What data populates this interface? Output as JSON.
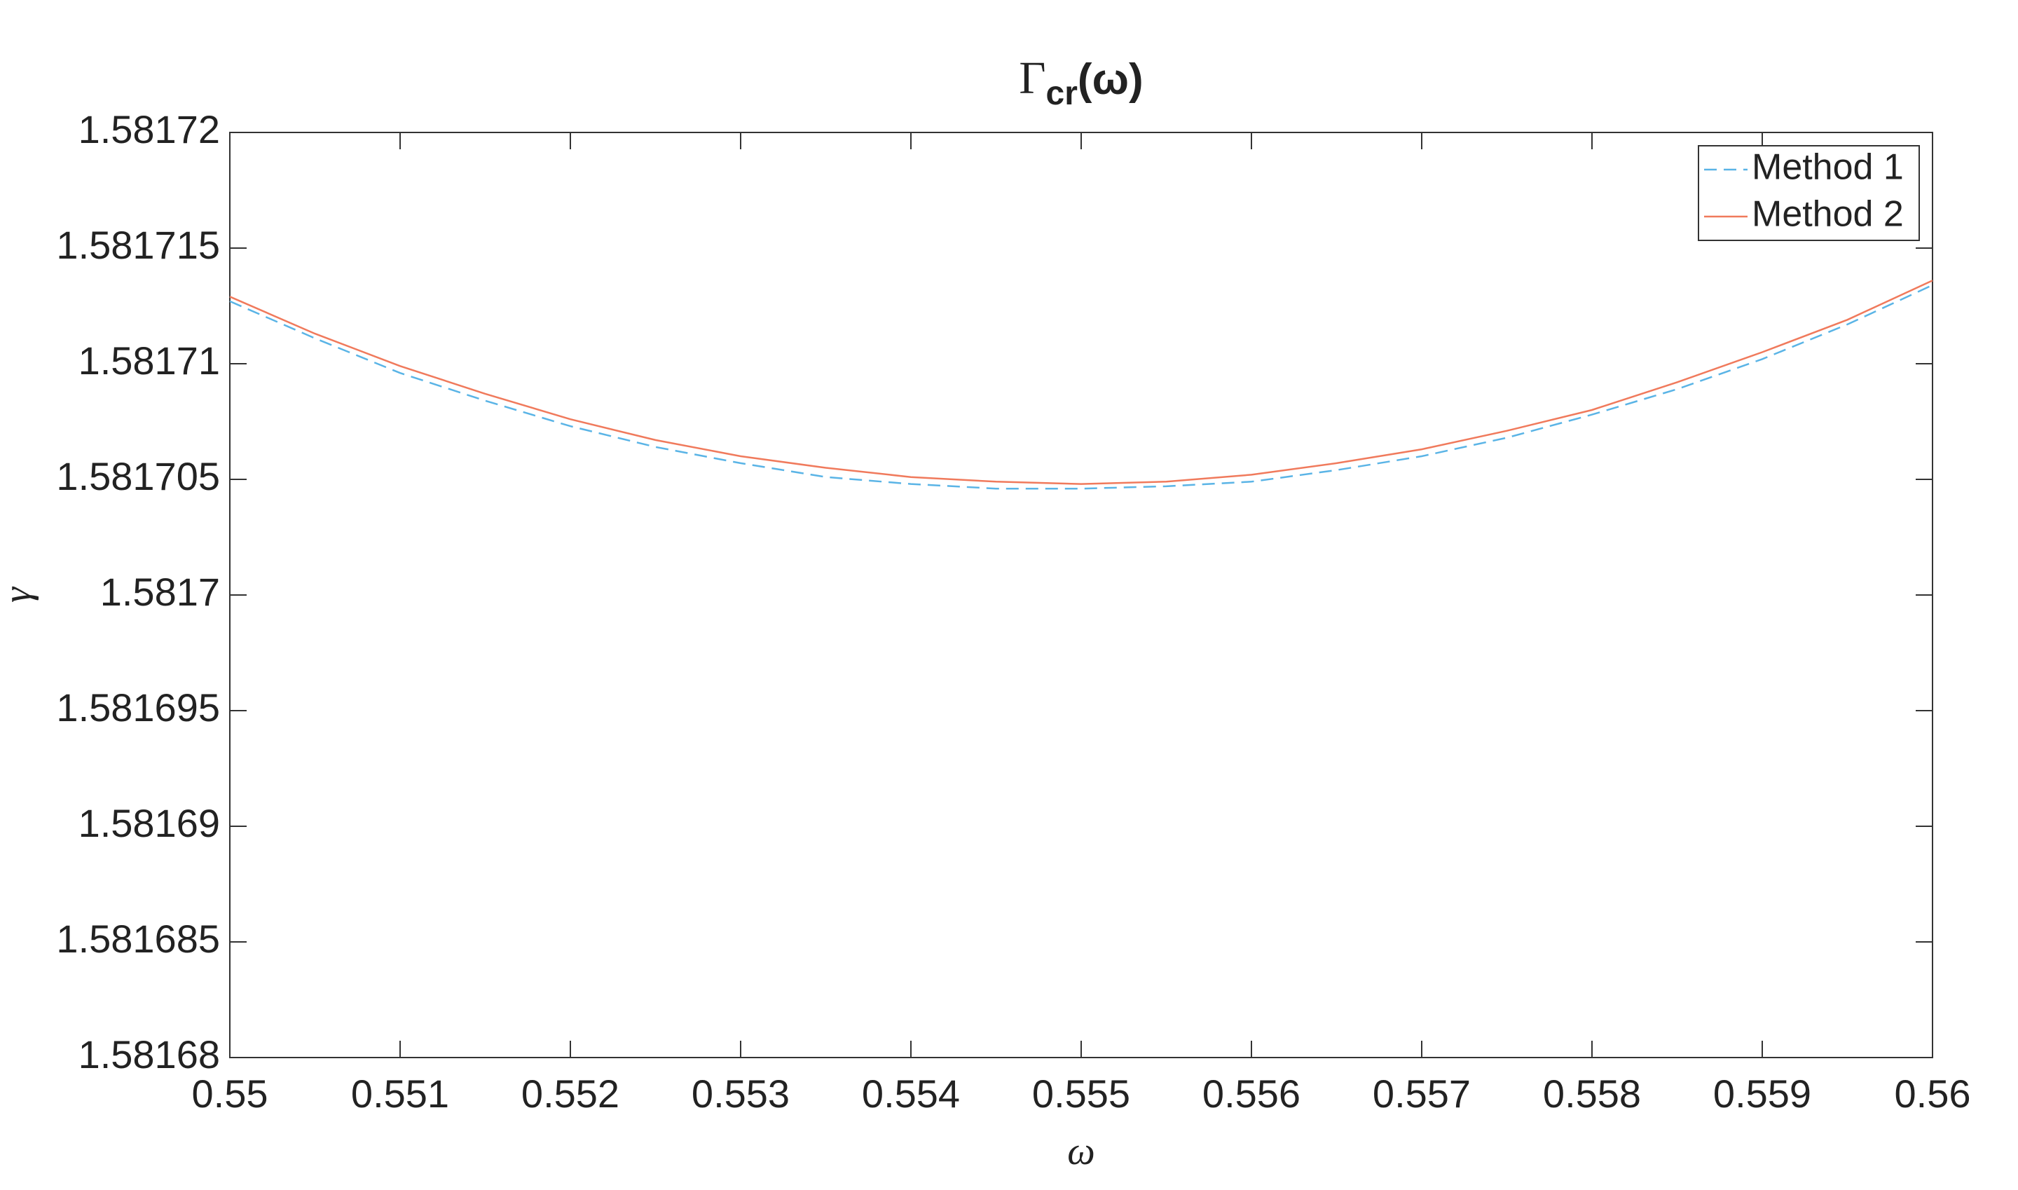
{
  "chart_data": {
    "type": "line",
    "title": [
      "Γ",
      "cr",
      "(ω)"
    ],
    "xlabel": "ω",
    "ylabel": "γ",
    "x": [
      0.55,
      0.5505,
      0.551,
      0.5515,
      0.552,
      0.5525,
      0.553,
      0.5535,
      0.554,
      0.5545,
      0.555,
      0.5555,
      0.556,
      0.5565,
      0.557,
      0.5575,
      0.558,
      0.5585,
      0.559,
      0.5595,
      0.56
    ],
    "series": [
      {
        "name": "Method 1",
        "color": "#5ab4e6",
        "line_style": "dashed",
        "values": [
          1.5817127,
          1.5817111,
          1.5817096,
          1.5817084,
          1.5817073,
          1.5817064,
          1.5817057,
          1.5817051,
          1.5817048,
          1.5817046,
          1.5817046,
          1.5817047,
          1.5817049,
          1.5817054,
          1.581706,
          1.5817068,
          1.5817078,
          1.5817089,
          1.5817102,
          1.5817117,
          1.5817134
        ]
      },
      {
        "name": "Method 2",
        "color": "#f07a5c",
        "line_style": "solid",
        "values": [
          1.5817129,
          1.5817113,
          1.5817099,
          1.5817087,
          1.5817076,
          1.5817067,
          1.581706,
          1.5817055,
          1.5817051,
          1.5817049,
          1.5817048,
          1.5817049,
          1.5817052,
          1.5817057,
          1.5817063,
          1.5817071,
          1.581708,
          1.5817092,
          1.5817105,
          1.5817119,
          1.5817136
        ]
      }
    ],
    "xlim": [
      0.55,
      0.56
    ],
    "xticks": [
      0.55,
      0.551,
      0.552,
      0.553,
      0.554,
      0.555,
      0.556,
      0.557,
      0.558,
      0.559,
      0.56
    ],
    "ylim": [
      1.58168,
      1.58172
    ],
    "yticks": [
      1.58168,
      1.581685,
      1.58169,
      1.581695,
      1.5817,
      1.581705,
      1.58171,
      1.581715,
      1.58172
    ],
    "grid": false,
    "legend_position": "northeast"
  }
}
